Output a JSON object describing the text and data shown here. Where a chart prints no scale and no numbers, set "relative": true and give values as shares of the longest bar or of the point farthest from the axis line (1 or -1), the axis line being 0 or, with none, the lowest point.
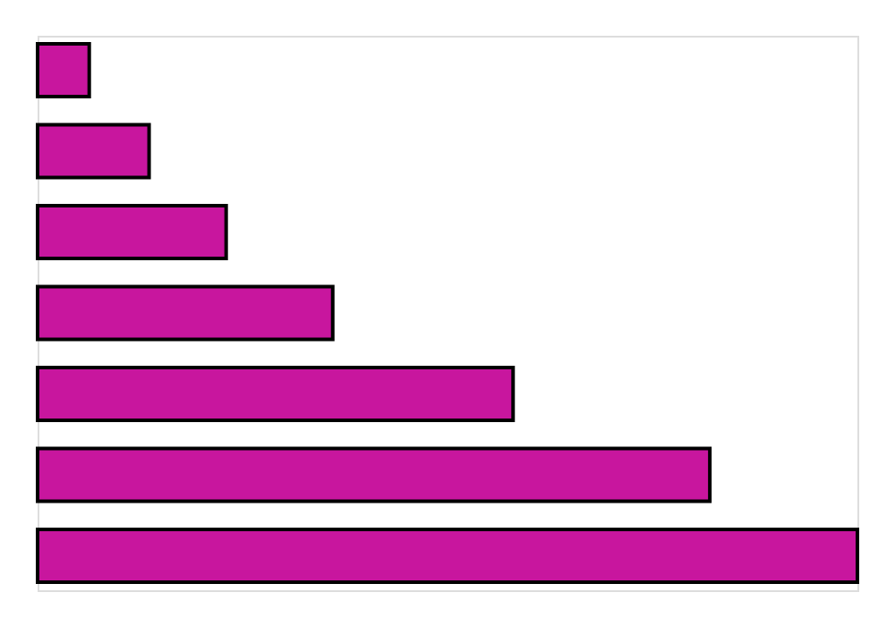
{
  "chart_data": {
    "type": "bar",
    "orientation": "horizontal",
    "relative": true,
    "tick_labels": false,
    "categories": [
      null,
      null,
      null,
      null,
      null,
      null,
      null
    ],
    "values": [
      0.063,
      0.136,
      0.23,
      0.36,
      0.58,
      0.82,
      1.0
    ],
    "color": "#c8169e"
  }
}
